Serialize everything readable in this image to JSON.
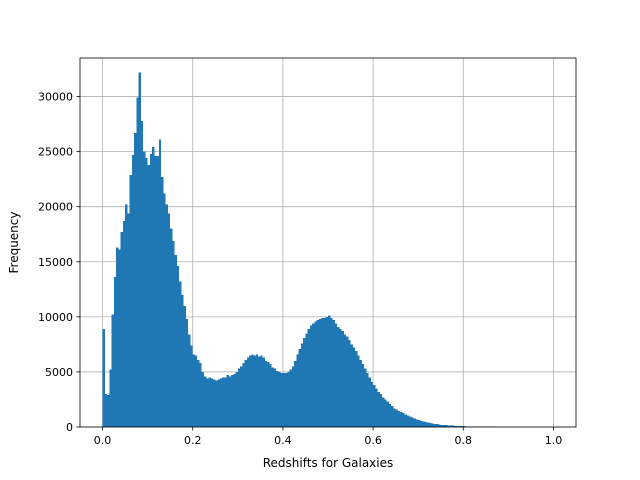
{
  "chart_data": {
    "type": "bar",
    "subtype": "histogram",
    "title": "",
    "xlabel": "Redshifts for Galaxies",
    "ylabel": "Frequency",
    "xlim": [
      -0.05,
      1.05
    ],
    "ylim": [
      0,
      33500
    ],
    "grid": true,
    "bar_color": "#1f77b4",
    "bin_width": 0.005,
    "x_ticks": [
      {
        "value": 0.0,
        "label": "0.0"
      },
      {
        "value": 0.2,
        "label": "0.2"
      },
      {
        "value": 0.4,
        "label": "0.4"
      },
      {
        "value": 0.6,
        "label": "0.6"
      },
      {
        "value": 0.8,
        "label": "0.8"
      },
      {
        "value": 1.0,
        "label": "1.0"
      }
    ],
    "y_ticks": [
      {
        "value": 0,
        "label": "0"
      },
      {
        "value": 5000,
        "label": "5000"
      },
      {
        "value": 10000,
        "label": "10000"
      },
      {
        "value": 15000,
        "label": "15000"
      },
      {
        "value": 20000,
        "label": "20000"
      },
      {
        "value": 25000,
        "label": "25000"
      },
      {
        "value": 30000,
        "label": "30000"
      }
    ],
    "bins_start": [
      0.0,
      0.005,
      0.01,
      0.015,
      0.02,
      0.025,
      0.03,
      0.035,
      0.04,
      0.045,
      0.05,
      0.055,
      0.06,
      0.065,
      0.07,
      0.075,
      0.08,
      0.085,
      0.09,
      0.095,
      0.1,
      0.105,
      0.11,
      0.115,
      0.12,
      0.125,
      0.13,
      0.135,
      0.14,
      0.145,
      0.15,
      0.155,
      0.16,
      0.165,
      0.17,
      0.175,
      0.18,
      0.185,
      0.19,
      0.195,
      0.2,
      0.205,
      0.21,
      0.215,
      0.22,
      0.225,
      0.23,
      0.235,
      0.24,
      0.245,
      0.25,
      0.255,
      0.26,
      0.265,
      0.27,
      0.275,
      0.28,
      0.285,
      0.29,
      0.295,
      0.3,
      0.305,
      0.31,
      0.315,
      0.32,
      0.325,
      0.33,
      0.335,
      0.34,
      0.345,
      0.35,
      0.355,
      0.36,
      0.365,
      0.37,
      0.375,
      0.38,
      0.385,
      0.39,
      0.395,
      0.4,
      0.405,
      0.41,
      0.415,
      0.42,
      0.425,
      0.43,
      0.435,
      0.44,
      0.445,
      0.45,
      0.455,
      0.46,
      0.465,
      0.47,
      0.475,
      0.48,
      0.485,
      0.49,
      0.495,
      0.5,
      0.505,
      0.51,
      0.515,
      0.52,
      0.525,
      0.53,
      0.535,
      0.54,
      0.545,
      0.55,
      0.555,
      0.56,
      0.565,
      0.57,
      0.575,
      0.58,
      0.585,
      0.59,
      0.595,
      0.6,
      0.605,
      0.61,
      0.615,
      0.62,
      0.625,
      0.63,
      0.635,
      0.64,
      0.645,
      0.65,
      0.655,
      0.66,
      0.665,
      0.67,
      0.675,
      0.68,
      0.685,
      0.69,
      0.695,
      0.7,
      0.705,
      0.71,
      0.715,
      0.72,
      0.725,
      0.73,
      0.735,
      0.74,
      0.745,
      0.75,
      0.755,
      0.76,
      0.765,
      0.77,
      0.775,
      0.78,
      0.785,
      0.79,
      0.795,
      0.8,
      0.805,
      0.81,
      0.815,
      0.82,
      0.825,
      0.83,
      0.835,
      0.84,
      0.845,
      0.85,
      0.855,
      0.86,
      0.865,
      0.87,
      0.875,
      0.88,
      0.885,
      0.89,
      0.895,
      0.9,
      0.905,
      0.91,
      0.915,
      0.92,
      0.925,
      0.93,
      0.935,
      0.94,
      0.945,
      0.95,
      0.955,
      0.96,
      0.965,
      0.97,
      0.975,
      0.98,
      0.985,
      0.99,
      0.995
    ],
    "values": [
      8900,
      3000,
      2900,
      5200,
      10200,
      13600,
      16300,
      16100,
      17700,
      18700,
      20200,
      19400,
      22900,
      24700,
      26700,
      29900,
      32200,
      27800,
      25000,
      24400,
      23800,
      24800,
      25400,
      24600,
      24600,
      26100,
      22700,
      21200,
      20200,
      19400,
      18000,
      16900,
      15600,
      14600,
      13200,
      12000,
      11000,
      9800,
      8400,
      7400,
      6600,
      6500,
      6100,
      5800,
      5000,
      4600,
      4400,
      4500,
      4400,
      4300,
      4200,
      4300,
      4400,
      4500,
      4500,
      4700,
      4600,
      4700,
      4800,
      5000,
      5300,
      5500,
      5800,
      6100,
      6300,
      6500,
      6600,
      6500,
      6600,
      6400,
      6500,
      6300,
      6000,
      5900,
      5700,
      5400,
      5300,
      5100,
      5000,
      4900,
      4900,
      4900,
      5000,
      5200,
      5500,
      6000,
      6600,
      7100,
      7600,
      8100,
      8500,
      8900,
      9200,
      9400,
      9600,
      9700,
      9800,
      9900,
      9900,
      10000,
      10100,
      9900,
      9700,
      9400,
      9100,
      8900,
      8700,
      8400,
      8200,
      7900,
      7500,
      7200,
      6900,
      6500,
      6100,
      5700,
      5300,
      4900,
      4500,
      4100,
      3800,
      3500,
      3200,
      3000,
      2700,
      2500,
      2300,
      2100,
      1900,
      1700,
      1600,
      1450,
      1350,
      1250,
      1150,
      1050,
      950,
      850,
      750,
      700,
      650,
      550,
      500,
      450,
      400,
      350,
      320,
      280,
      250,
      220,
      200,
      180,
      160,
      140,
      130,
      120,
      110,
      100,
      90,
      80,
      70,
      65,
      60,
      55,
      50,
      45,
      40,
      38,
      35,
      32,
      30,
      28,
      26,
      24,
      22,
      20,
      18,
      16,
      15,
      14,
      13,
      12,
      11,
      10,
      9,
      8,
      7,
      6,
      5,
      5,
      4,
      4,
      3,
      3,
      2,
      2,
      2,
      1,
      1,
      1
    ]
  }
}
